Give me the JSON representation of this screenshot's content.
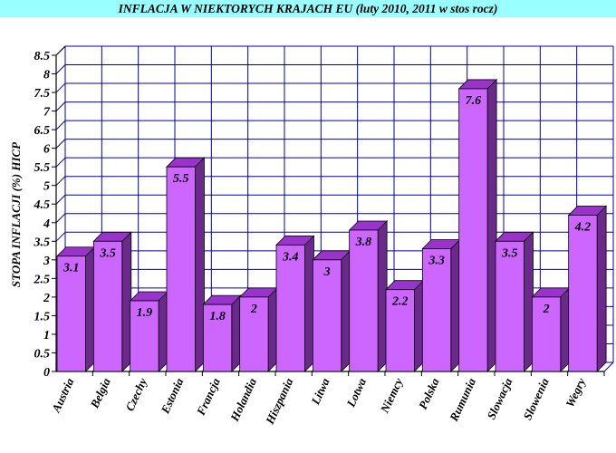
{
  "chart_data": {
    "type": "bar",
    "title": "INFLACJA W NIEKTORYCH KRAJACH EU (luty 2010, 2011 w stos rocz)",
    "ylabel": "STOPA INFLACJI (%) HICP",
    "xlabel": "",
    "ylim": [
      0,
      8.5
    ],
    "ytick_step": 0.5,
    "categories": [
      "Austria",
      "Belgia",
      "Czechy",
      "Estonia",
      "Francja",
      "Holandia",
      "Hiszpania",
      "Litwa",
      "Lotwa",
      "Niemcy",
      "Polska",
      "Rumunia",
      "Slowacja",
      "Slowenia",
      "Wegry"
    ],
    "values": [
      3.1,
      3.5,
      1.9,
      5.5,
      1.8,
      2,
      3.4,
      3,
      3.8,
      2.2,
      3.3,
      7.6,
      3.5,
      2,
      4.2
    ],
    "grid": true,
    "legend": "none",
    "colors": {
      "bar_front": "#cc66ff",
      "bar_side": "#6a2a8a",
      "bar_top": "#9933cc",
      "grid": "#0000aa",
      "title_band": "#99ffff"
    }
  }
}
